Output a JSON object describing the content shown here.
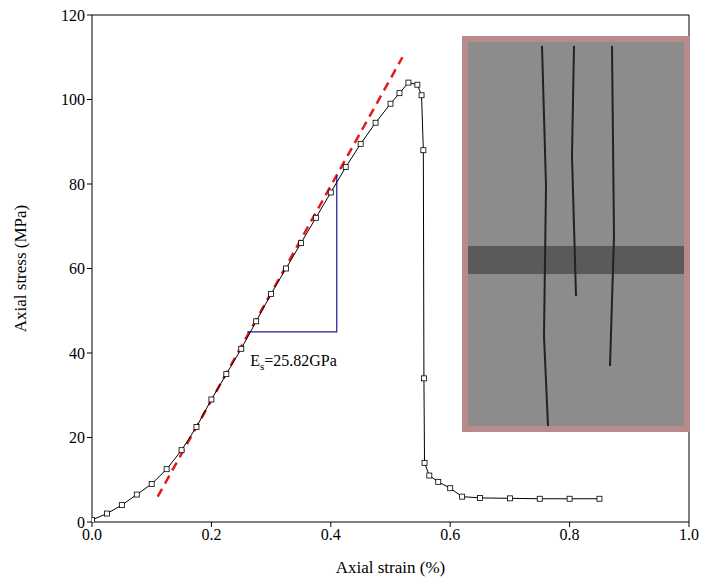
{
  "chart_data": {
    "type": "line",
    "x_label": "Axial strain (%)",
    "y_label": "Axial stress (MPa)",
    "xlim": [
      0,
      1
    ],
    "ylim": [
      0,
      120
    ],
    "xticks": [
      {
        "value": 0,
        "label": "0.0"
      },
      0.2,
      0.4,
      0.6,
      0.8,
      {
        "value": 1,
        "label": "1.0"
      }
    ],
    "yticks": [
      0,
      20,
      40,
      60,
      80,
      100,
      120
    ],
    "color": "#000000",
    "marker": "square",
    "x": [
      0,
      0.025,
      0.05,
      0.075,
      0.1,
      0.125,
      0.15,
      0.175,
      0.2,
      0.225,
      0.25,
      0.275,
      0.3,
      0.325,
      0.35,
      0.375,
      0.4,
      0.425,
      0.45,
      0.475,
      0.5,
      0.515,
      0.53,
      0.545,
      0.552,
      0.555,
      0.556,
      0.557,
      0.565,
      0.58,
      0.6,
      0.62,
      0.65,
      0.7,
      0.75,
      0.8,
      0.85
    ],
    "values": [
      0.5,
      2,
      4,
      6.5,
      9,
      12.5,
      17,
      22.5,
      29,
      35,
      41,
      47.5,
      54,
      60,
      66,
      72,
      78,
      84,
      89.5,
      94.5,
      99,
      101.5,
      104,
      103.5,
      101,
      88,
      34,
      14,
      11,
      9.5,
      8,
      6,
      5.7,
      5.6,
      5.5,
      5.5,
      5.5
    ],
    "tangent_line": {
      "x": [
        0.11,
        0.52
      ],
      "y": [
        6,
        110
      ],
      "color": "#e31a1c",
      "line_style": "dashed"
    },
    "slope_triangle": {
      "x": [
        0.26,
        0.41,
        0.41
      ],
      "y": [
        45,
        45,
        82
      ],
      "color": "#1a1aa0"
    },
    "annotation": {
      "main": "E",
      "sub": "s",
      "rest": "=25.82GPa",
      "x": 0.265,
      "y": 37
    }
  }
}
